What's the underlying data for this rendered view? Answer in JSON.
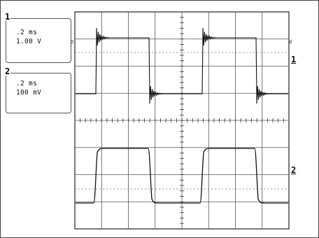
{
  "channels": [
    {
      "number": "1",
      "timebase": ".2 ms",
      "scale": "1.00 V"
    },
    {
      "number": "2",
      "timebase": ".2 ms",
      "scale": "100 mV"
    }
  ],
  "trace_labels": [
    "1",
    "2"
  ],
  "markers": {
    "left": "D",
    "right": "d"
  }
}
